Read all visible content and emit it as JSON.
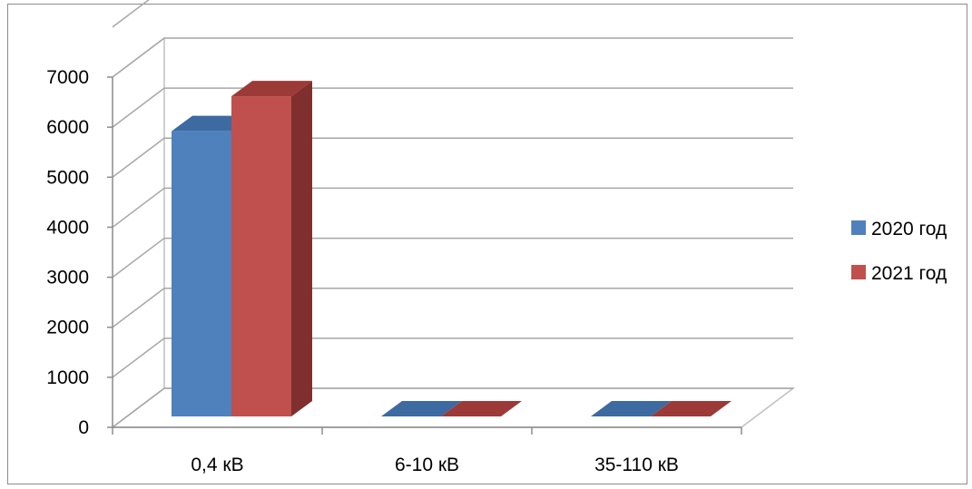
{
  "chart_data": {
    "type": "bar",
    "title": "",
    "xlabel": "",
    "ylabel": "",
    "categories": [
      "0,4 кВ",
      "6-10 кВ",
      "35-110 кВ"
    ],
    "series": [
      {
        "name": "2020 год",
        "values": [
          5700,
          0,
          0
        ],
        "color": "#4f81bd",
        "side_color": "#3a6393",
        "top_color": "#3d6aa0"
      },
      {
        "name": "2021 год",
        "values": [
          6400,
          0,
          0
        ],
        "color": "#c0504d",
        "side_color": "#7f2f2d",
        "top_color": "#9c3a37"
      }
    ],
    "yticks": [
      "0",
      "1000",
      "2000",
      "3000",
      "4000",
      "5000",
      "6000",
      "7000"
    ],
    "ylim": [
      0,
      7000
    ],
    "grid": true,
    "legend": "right",
    "style": "3d-clustered-column"
  }
}
